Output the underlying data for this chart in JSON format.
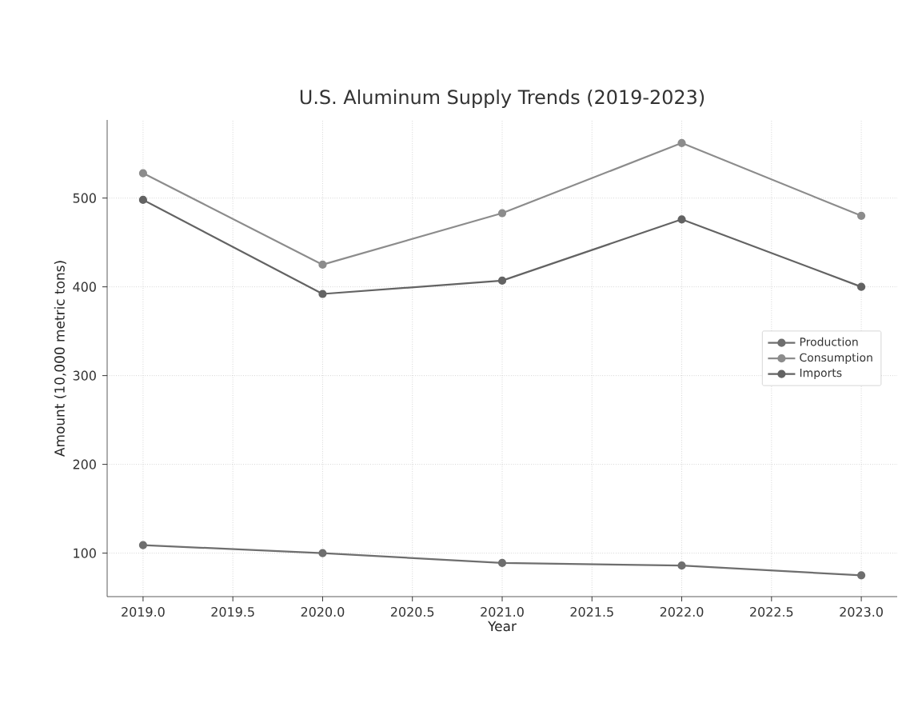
{
  "chart_data": {
    "type": "line",
    "title": "U.S. Aluminum Supply Trends (2019-2023)",
    "xlabel": "Year",
    "ylabel": "Amount (10,000 metric tons)",
    "x": [
      2019,
      2020,
      2021,
      2022,
      2023
    ],
    "series": [
      {
        "name": "Production",
        "color": "#6e6e6e",
        "values": [
          109,
          100,
          89,
          86,
          75
        ]
      },
      {
        "name": "Consumption",
        "color": "#8c8c8c",
        "values": [
          528,
          425,
          483,
          562,
          480
        ]
      },
      {
        "name": "Imports",
        "color": "#636363",
        "values": [
          498,
          392,
          407,
          476,
          400
        ]
      }
    ],
    "xlim": [
      2018.8,
      2023.2
    ],
    "ylim": [
      51,
      588
    ],
    "xticks": [
      {
        "value": 2019,
        "label": "2019.0"
      },
      {
        "value": 2019.5,
        "label": "2019.5"
      },
      {
        "value": 2020,
        "label": "2020.0"
      },
      {
        "value": 2020.5,
        "label": "2020.5"
      },
      {
        "value": 2021,
        "label": "2021.0"
      },
      {
        "value": 2021.5,
        "label": "2021.5"
      },
      {
        "value": 2022,
        "label": "2022.0"
      },
      {
        "value": 2022.5,
        "label": "2022.5"
      },
      {
        "value": 2023,
        "label": "2023.0"
      }
    ],
    "yticks": [
      100,
      200,
      300,
      400,
      500
    ],
    "grid": true,
    "legend": "right",
    "marker": "circle",
    "line_style": "solid"
  }
}
